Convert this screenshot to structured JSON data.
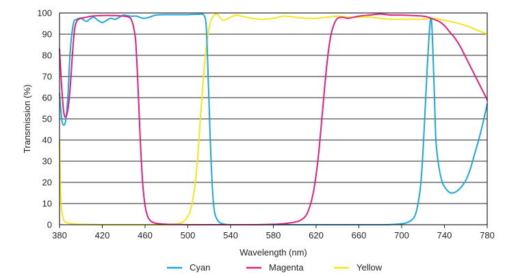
{
  "chart_data": {
    "type": "line",
    "title": "",
    "xlabel": "Wavelength (nm)",
    "ylabel": "Transmission (%)",
    "xlim": [
      380,
      780
    ],
    "ylim": [
      0,
      100
    ],
    "x_ticks": [
      380,
      420,
      460,
      500,
      540,
      580,
      620,
      660,
      700,
      740,
      780
    ],
    "y_ticks": [
      0,
      10,
      20,
      30,
      40,
      50,
      60,
      70,
      80,
      90,
      100
    ],
    "grid": "horizontal",
    "legend": "bottom",
    "series": [
      {
        "name": "Cyan",
        "color": "#1ea6dc",
        "x": [
          380,
          382,
          384,
          386,
          388,
          390,
          393,
          396,
          400,
          405,
          408,
          412,
          416,
          420,
          424,
          428,
          432,
          436,
          440,
          446,
          452,
          458,
          464,
          470,
          480,
          490,
          500,
          510,
          515,
          517,
          518,
          519,
          520,
          521,
          522,
          523,
          524,
          525,
          526,
          528,
          530,
          532,
          535,
          540,
          550,
          560,
          580,
          600,
          620,
          640,
          660,
          680,
          690,
          700,
          705,
          710,
          713,
          716,
          718,
          720,
          722,
          724,
          726,
          727,
          728,
          729,
          730,
          731,
          732,
          734,
          736,
          738,
          740,
          744,
          748,
          752,
          756,
          760,
          764,
          768,
          772,
          776,
          780
        ],
        "y": [
          62,
          50,
          47,
          50,
          62,
          82,
          95,
          97,
          97.5,
          96,
          97,
          98,
          96.5,
          95.5,
          96.5,
          97.5,
          97,
          98,
          99,
          98.5,
          98.5,
          97.5,
          98,
          99,
          99.2,
          99.2,
          99.2,
          99.4,
          99,
          95,
          85,
          70,
          55,
          40,
          27,
          17,
          10,
          6,
          4,
          2,
          1,
          0.5,
          0.2,
          0,
          0,
          0,
          0,
          0,
          0,
          0,
          0,
          0,
          0.1,
          0.5,
          1,
          2.5,
          5,
          12,
          20,
          35,
          55,
          75,
          92,
          97,
          96,
          85,
          70,
          55,
          40,
          30,
          24,
          20,
          18,
          15.5,
          15,
          16,
          18,
          21,
          26,
          33,
          40,
          48,
          57
        ]
      },
      {
        "name": "Magenta",
        "color": "#de1f7d",
        "x": [
          380,
          382,
          384,
          386,
          388,
          390,
          392,
          394,
          396,
          398,
          400,
          405,
          410,
          420,
          430,
          440,
          445,
          447,
          449,
          451,
          452,
          453,
          454,
          455,
          456,
          457,
          458,
          460,
          462,
          464,
          466,
          468,
          470,
          475,
          480,
          490,
          500,
          520,
          540,
          560,
          580,
          590,
          600,
          605,
          610,
          613,
          616,
          619,
          622,
          625,
          628,
          631,
          634,
          637,
          640,
          645,
          650,
          660,
          670,
          680,
          690,
          700,
          710,
          720,
          725,
          730,
          735,
          740,
          745,
          750,
          755,
          760,
          765,
          770,
          775,
          780
        ],
        "y": [
          83,
          65,
          53,
          51,
          55,
          65,
          80,
          92,
          96,
          97,
          97.5,
          98,
          98.5,
          98.8,
          98.8,
          98.5,
          98,
          97,
          94,
          88,
          80,
          70,
          58,
          46,
          35,
          26,
          18,
          9,
          4.5,
          2.5,
          1.5,
          1,
          0.7,
          0.4,
          0.2,
          0.1,
          0,
          0,
          0,
          0,
          0.2,
          0.5,
          1.2,
          2,
          4,
          7,
          12,
          20,
          32,
          48,
          65,
          80,
          90,
          95,
          97.5,
          98,
          97.5,
          98.5,
          99,
          99.5,
          99,
          99,
          98.8,
          98.5,
          98,
          97,
          96,
          94,
          91,
          88,
          84,
          79,
          74,
          69,
          64,
          59
        ]
      },
      {
        "name": "Yellow",
        "color": "#f5e61a",
        "x": [
          380,
          381,
          382,
          383,
          384,
          385,
          387,
          390,
          395,
          400,
          420,
          450,
          480,
          490,
          494,
          497,
          500,
          502,
          504,
          506,
          508,
          510,
          512,
          514,
          516,
          518,
          520,
          522,
          524,
          526,
          528,
          530,
          533,
          536,
          540,
          545,
          550,
          560,
          570,
          580,
          590,
          600,
          610,
          620,
          630,
          640,
          650,
          660,
          670,
          680,
          690,
          700,
          710,
          720,
          730,
          740,
          750,
          760,
          770,
          780
        ],
        "y": [
          40,
          15,
          7,
          4,
          2,
          1.5,
          1,
          0.6,
          0.3,
          0.2,
          0,
          0,
          0,
          0.4,
          1,
          2,
          4,
          6,
          10,
          16,
          25,
          37,
          52,
          66,
          78,
          87,
          93,
          97,
          98.5,
          99.5,
          99,
          98,
          96.5,
          97,
          98,
          99,
          98.5,
          97.5,
          97,
          97.5,
          98.5,
          98,
          97.5,
          97.5,
          98,
          98.5,
          98,
          98,
          98,
          97.5,
          97,
          97,
          97,
          97,
          97.5,
          96.5,
          95.5,
          94,
          92,
          90
        ]
      }
    ]
  }
}
